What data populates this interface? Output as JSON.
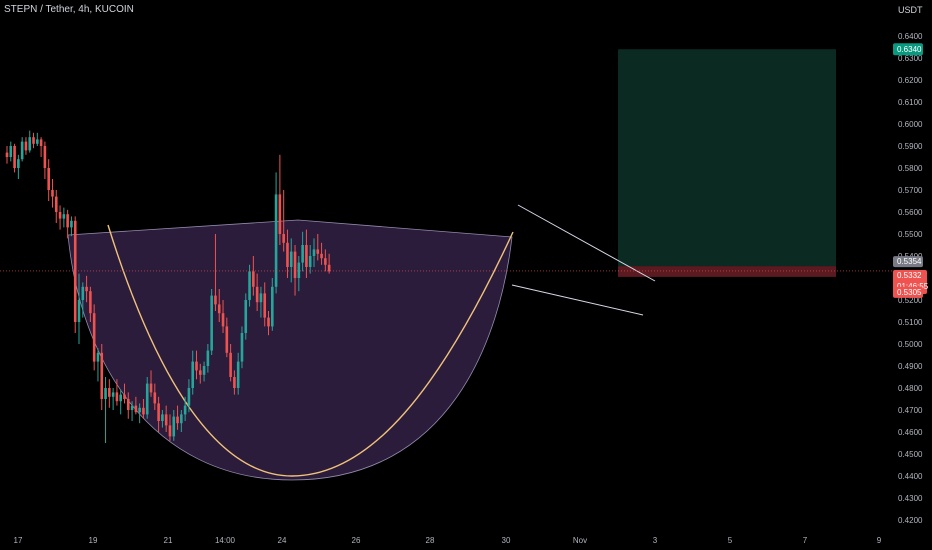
{
  "header": {
    "symbol": "STEPN / Tether, 4h, KUCOIN",
    "currency": "USDT"
  },
  "colors": {
    "background": "#000000",
    "bull": "#26a69a",
    "bear": "#ef5350",
    "cup_fill": "#3a2550",
    "cup_stroke": "#c8c0e8",
    "arc": "#f0c27a",
    "target_zone": "#0b2a22",
    "stop_zone": "#5a1a20",
    "channel": "#d8d8e8",
    "price_line": "#ef5350"
  },
  "chart_data": {
    "type": "candlestick",
    "ylim": [
      0.42,
      0.645
    ],
    "yticks": [
      "0.6400",
      "0.6300",
      "0.6200",
      "0.6100",
      "0.6000",
      "0.5900",
      "0.5800",
      "0.5700",
      "0.5600",
      "0.5500",
      "0.5400",
      "0.5300",
      "0.5200",
      "0.5100",
      "0.5000",
      "0.4900",
      "0.4800",
      "0.4700",
      "0.4600",
      "0.4500",
      "0.4400",
      "0.4300",
      "0.4200"
    ],
    "xticks": [
      "17",
      "19",
      "21",
      "14:00",
      "24",
      "26",
      "28",
      "30",
      "Nov",
      "3",
      "5",
      "7",
      "9"
    ],
    "candles": [
      [
        0.587,
        0.59,
        0.582,
        0.585
      ],
      [
        0.585,
        0.592,
        0.583,
        0.59
      ],
      [
        0.59,
        0.591,
        0.578,
        0.58
      ],
      [
        0.58,
        0.586,
        0.575,
        0.584
      ],
      [
        0.584,
        0.594,
        0.583,
        0.592
      ],
      [
        0.592,
        0.594,
        0.586,
        0.588
      ],
      [
        0.588,
        0.597,
        0.587,
        0.594
      ],
      [
        0.594,
        0.596,
        0.589,
        0.591
      ],
      [
        0.591,
        0.596,
        0.59,
        0.593
      ],
      [
        0.593,
        0.594,
        0.585,
        0.59
      ],
      [
        0.59,
        0.592,
        0.575,
        0.58
      ],
      [
        0.58,
        0.584,
        0.565,
        0.57
      ],
      [
        0.57,
        0.575,
        0.562,
        0.567
      ],
      [
        0.567,
        0.57,
        0.555,
        0.56
      ],
      [
        0.56,
        0.563,
        0.552,
        0.557
      ],
      [
        0.557,
        0.562,
        0.553,
        0.559
      ],
      [
        0.559,
        0.561,
        0.548,
        0.553
      ],
      [
        0.553,
        0.558,
        0.549,
        0.556
      ],
      [
        0.556,
        0.558,
        0.505,
        0.51
      ],
      [
        0.51,
        0.532,
        0.5,
        0.52
      ],
      [
        0.52,
        0.528,
        0.512,
        0.526
      ],
      [
        0.526,
        0.531,
        0.519,
        0.524
      ],
      [
        0.524,
        0.526,
        0.51,
        0.514
      ],
      [
        0.514,
        0.518,
        0.488,
        0.492
      ],
      [
        0.492,
        0.498,
        0.483,
        0.496
      ],
      [
        0.496,
        0.5,
        0.47,
        0.475
      ],
      [
        0.475,
        0.485,
        0.455,
        0.48
      ],
      [
        0.48,
        0.484,
        0.471,
        0.476
      ],
      [
        0.476,
        0.48,
        0.47,
        0.478
      ],
      [
        0.478,
        0.484,
        0.472,
        0.474
      ],
      [
        0.474,
        0.479,
        0.468,
        0.477
      ],
      [
        0.477,
        0.482,
        0.473,
        0.475
      ],
      [
        0.475,
        0.478,
        0.466,
        0.47
      ],
      [
        0.47,
        0.474,
        0.465,
        0.472
      ],
      [
        0.472,
        0.476,
        0.468,
        0.469
      ],
      [
        0.469,
        0.473,
        0.464,
        0.471
      ],
      [
        0.471,
        0.475,
        0.466,
        0.468
      ],
      [
        0.468,
        0.485,
        0.466,
        0.482
      ],
      [
        0.482,
        0.488,
        0.476,
        0.478
      ],
      [
        0.478,
        0.482,
        0.47,
        0.473
      ],
      [
        0.473,
        0.476,
        0.46,
        0.465
      ],
      [
        0.465,
        0.47,
        0.462,
        0.468
      ],
      [
        0.468,
        0.472,
        0.46,
        0.463
      ],
      [
        0.463,
        0.468,
        0.456,
        0.458
      ],
      [
        0.458,
        0.47,
        0.456,
        0.467
      ],
      [
        0.467,
        0.472,
        0.461,
        0.464
      ],
      [
        0.464,
        0.47,
        0.46,
        0.468
      ],
      [
        0.468,
        0.476,
        0.465,
        0.472
      ],
      [
        0.472,
        0.484,
        0.469,
        0.48
      ],
      [
        0.48,
        0.497,
        0.477,
        0.492
      ],
      [
        0.492,
        0.497,
        0.484,
        0.488
      ],
      [
        0.488,
        0.491,
        0.482,
        0.486
      ],
      [
        0.486,
        0.492,
        0.483,
        0.49
      ],
      [
        0.49,
        0.5,
        0.487,
        0.497
      ],
      [
        0.497,
        0.525,
        0.495,
        0.522
      ],
      [
        0.522,
        0.55,
        0.515,
        0.518
      ],
      [
        0.518,
        0.525,
        0.51,
        0.514
      ],
      [
        0.514,
        0.52,
        0.505,
        0.508
      ],
      [
        0.508,
        0.512,
        0.494,
        0.496
      ],
      [
        0.496,
        0.5,
        0.483,
        0.485
      ],
      [
        0.485,
        0.488,
        0.477,
        0.48
      ],
      [
        0.48,
        0.496,
        0.477,
        0.492
      ],
      [
        0.492,
        0.508,
        0.489,
        0.505
      ],
      [
        0.505,
        0.523,
        0.502,
        0.52
      ],
      [
        0.52,
        0.536,
        0.517,
        0.533
      ],
      [
        0.533,
        0.54,
        0.522,
        0.526
      ],
      [
        0.526,
        0.532,
        0.515,
        0.519
      ],
      [
        0.519,
        0.526,
        0.512,
        0.523
      ],
      [
        0.523,
        0.528,
        0.508,
        0.512
      ],
      [
        0.512,
        0.515,
        0.504,
        0.508
      ],
      [
        0.508,
        0.53,
        0.506,
        0.526
      ],
      [
        0.526,
        0.578,
        0.523,
        0.568
      ],
      [
        0.568,
        0.586,
        0.545,
        0.55
      ],
      [
        0.55,
        0.57,
        0.542,
        0.546
      ],
      [
        0.546,
        0.552,
        0.53,
        0.535
      ],
      [
        0.535,
        0.548,
        0.528,
        0.542
      ],
      [
        0.542,
        0.545,
        0.522,
        0.53
      ],
      [
        0.53,
        0.54,
        0.524,
        0.537
      ],
      [
        0.537,
        0.551,
        0.533,
        0.545
      ],
      [
        0.545,
        0.552,
        0.53,
        0.535
      ],
      [
        0.535,
        0.545,
        0.532,
        0.54
      ],
      [
        0.54,
        0.548,
        0.535,
        0.543
      ],
      [
        0.543,
        0.55,
        0.538,
        0.541
      ],
      [
        0.541,
        0.546,
        0.536,
        0.539
      ],
      [
        0.539,
        0.543,
        0.533,
        0.536
      ],
      [
        0.536,
        0.541,
        0.532,
        0.533
      ]
    ],
    "current_price": 0.5332,
    "target_price": 0.634,
    "entry_price": 0.5354,
    "stop_price": 0.5305
  },
  "price_tags": {
    "target": "0.6340",
    "entry": "0.5354",
    "current": "0.5332",
    "countdown": "01:46:55",
    "stop": "0.5305"
  }
}
